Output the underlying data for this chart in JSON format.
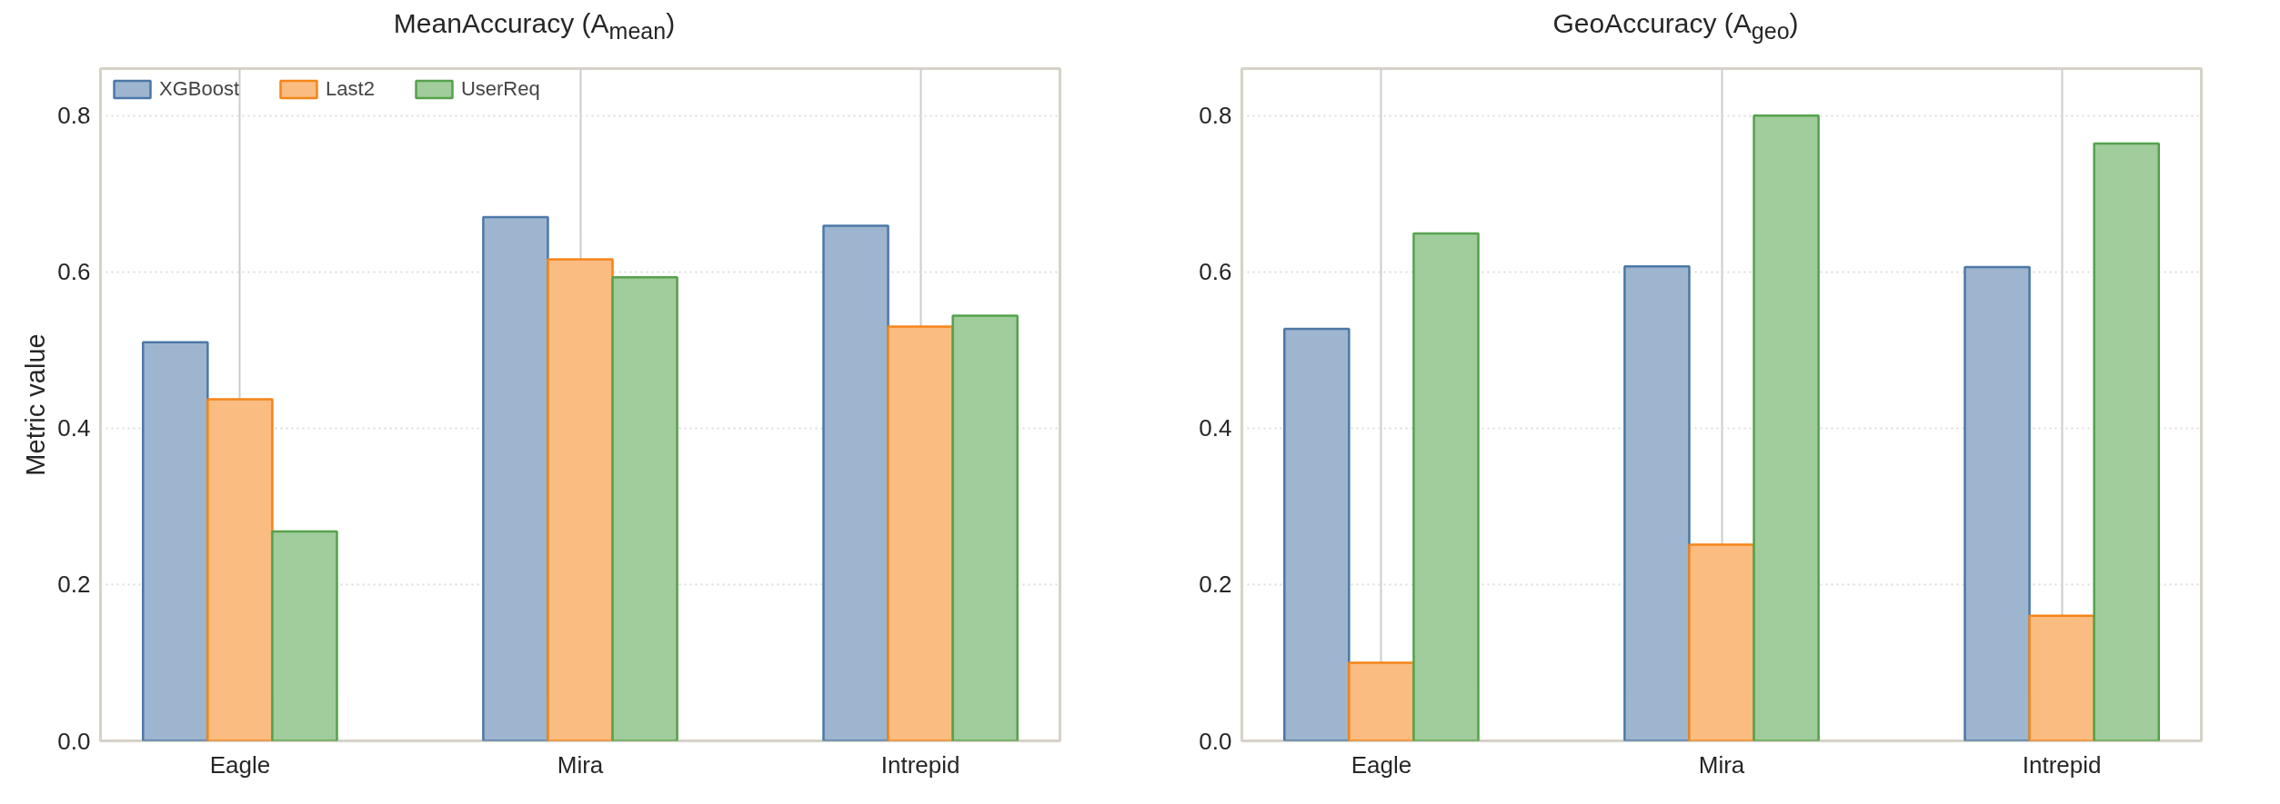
{
  "chart_data": [
    {
      "type": "bar",
      "title": "MeanAccuracy (A$_{mean}$)",
      "ylabel": "Metric value",
      "categories": [
        "Eagle",
        "Mira",
        "Intrepid"
      ],
      "series": [
        {
          "name": "XGBoost",
          "color": "#4c78a8",
          "values": [
            0.51,
            0.67,
            0.659
          ]
        },
        {
          "name": "Last2",
          "color": "#f58518",
          "values": [
            0.437,
            0.616,
            0.53
          ]
        },
        {
          "name": "UserReq",
          "color": "#54a24b",
          "values": [
            0.268,
            0.593,
            0.544
          ]
        }
      ],
      "ylim": [
        0,
        0.86
      ],
      "yticks": [
        {
          "value": 0,
          "label": "0.0"
        },
        0.2,
        0.4,
        0.6,
        0.8
      ],
      "grid": true,
      "legend": "top left"
    },
    {
      "type": "bar",
      "title": "GeoAccuracy (A$_{geo}$)",
      "categories": [
        "Eagle",
        "Mira",
        "Intrepid"
      ],
      "series": [
        {
          "color": "#4c78a8",
          "values": [
            0.527,
            0.607,
            0.606
          ]
        },
        {
          "color": "#f58518",
          "values": [
            0.1,
            0.251,
            0.16
          ]
        },
        {
          "color": "#54a24b",
          "values": [
            0.649,
            0.8,
            0.764
          ]
        }
      ],
      "ylim": [
        0,
        0.86
      ],
      "yticks": [
        {
          "value": 0,
          "label": "0.0"
        },
        0.2,
        0.4,
        0.6,
        0.8
      ],
      "grid": true
    }
  ]
}
